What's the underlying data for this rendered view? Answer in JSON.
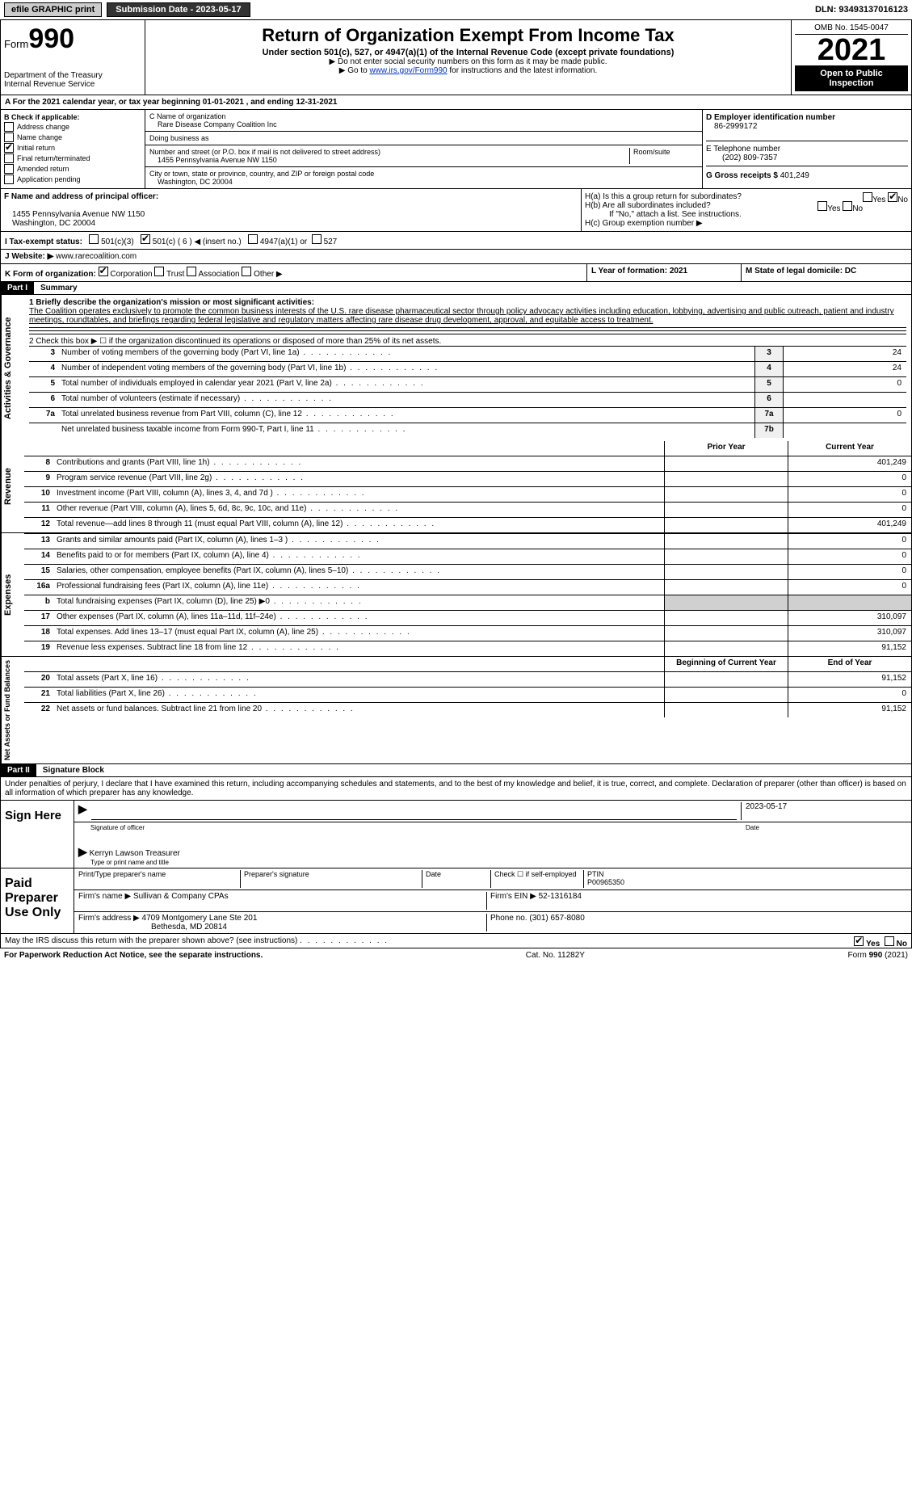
{
  "topbar": {
    "efile": "efile GRAPHIC print",
    "submission": "Submission Date - 2023-05-17",
    "dln": "DLN: 93493137016123"
  },
  "header": {
    "form_label": "Form",
    "form_number": "990",
    "title": "Return of Organization Exempt From Income Tax",
    "subtitle": "Under section 501(c), 527, or 4947(a)(1) of the Internal Revenue Code (except private foundations)",
    "note1": "▶ Do not enter social security numbers on this form as it may be made public.",
    "note2": "▶ Go to ",
    "link": "www.irs.gov/Form990",
    "note3": " for instructions and the latest information.",
    "dept": "Department of the Treasury",
    "irs": "Internal Revenue Service",
    "omb": "OMB No. 1545-0047",
    "year": "2021",
    "open": "Open to Public Inspection"
  },
  "lineA": "A For the 2021 calendar year, or tax year beginning 01-01-2021    , and ending 12-31-2021",
  "boxB": {
    "title": "B Check if applicable:",
    "items": [
      "Address change",
      "Name change",
      "Initial return",
      "Final return/terminated",
      "Amended return",
      "Application pending"
    ],
    "checked": "Initial return"
  },
  "boxC": {
    "name_label": "C Name of organization",
    "name": "Rare Disease Company Coalition Inc",
    "dba_label": "Doing business as",
    "dba": "",
    "addr_label": "Number and street (or P.O. box if mail is not delivered to street address)",
    "room_label": "Room/suite",
    "addr": "1455 Pennsylvania Avenue NW 1150",
    "city_label": "City or town, state or province, country, and ZIP or foreign postal code",
    "city": "Washington, DC  20004"
  },
  "boxD": {
    "label": "D Employer identification number",
    "value": "86-2999172"
  },
  "boxE": {
    "label": "E Telephone number",
    "value": "(202) 809-7357"
  },
  "boxG": {
    "label": "G Gross receipts $",
    "value": "401,249"
  },
  "boxF": {
    "label": "F Name and address of principal officer:",
    "addr1": "1455 Pennsylvania Avenue NW 1150",
    "addr2": "Washington, DC  20004"
  },
  "boxH": {
    "a": "H(a)  Is this a group return for subordinates?",
    "b": "H(b)  Are all subordinates included?",
    "note": "If \"No,\" attach a list. See instructions.",
    "c": "H(c)  Group exemption number ▶"
  },
  "boxI": {
    "label": "I  Tax-exempt status:",
    "opt1": "501(c)(3)",
    "opt2": "501(c) ( 6 ) ◀ (insert no.)",
    "opt3": "4947(a)(1) or",
    "opt4": "527"
  },
  "boxJ": {
    "label": "J  Website: ▶",
    "value": "www.rarecoalition.com"
  },
  "boxK": {
    "label": "K Form of organization:",
    "opts": [
      "Corporation",
      "Trust",
      "Association",
      "Other ▶"
    ]
  },
  "boxL": {
    "label": "L Year of formation: 2021"
  },
  "boxM": {
    "label": "M State of legal domicile: DC"
  },
  "part1": {
    "header": "Part I",
    "title": "Summary",
    "line1_label": "1  Briefly describe the organization's mission or most significant activities:",
    "mission": "The Coalition operates exclusively to promote the common business interests of the U.S. rare disease pharmaceutical sector through policy advocacy activities including education, lobbying, advertising and public outreach, patient and industry meetings, roundtables, and briefings regarding federal legislative and regulatory matters affecting rare disease drug development, approval, and equitable access to treatment.",
    "line2": "2   Check this box ▶ ☐ if the organization discontinued its operations or disposed of more than 25% of its net assets.",
    "rows_gov": [
      {
        "n": "3",
        "label": "Number of voting members of the governing body (Part VI, line 1a)",
        "box": "3",
        "val": "24"
      },
      {
        "n": "4",
        "label": "Number of independent voting members of the governing body (Part VI, line 1b)",
        "box": "4",
        "val": "24"
      },
      {
        "n": "5",
        "label": "Total number of individuals employed in calendar year 2021 (Part V, line 2a)",
        "box": "5",
        "val": "0"
      },
      {
        "n": "6",
        "label": "Total number of volunteers (estimate if necessary)",
        "box": "6",
        "val": ""
      },
      {
        "n": "7a",
        "label": "Total unrelated business revenue from Part VIII, column (C), line 12",
        "box": "7a",
        "val": "0"
      },
      {
        "n": "",
        "label": "Net unrelated business taxable income from Form 990-T, Part I, line 11",
        "box": "7b",
        "val": ""
      }
    ],
    "col_prior": "Prior Year",
    "col_current": "Current Year",
    "rows_rev": [
      {
        "n": "8",
        "label": "Contributions and grants (Part VIII, line 1h)",
        "prior": "",
        "cur": "401,249"
      },
      {
        "n": "9",
        "label": "Program service revenue (Part VIII, line 2g)",
        "prior": "",
        "cur": "0"
      },
      {
        "n": "10",
        "label": "Investment income (Part VIII, column (A), lines 3, 4, and 7d )",
        "prior": "",
        "cur": "0"
      },
      {
        "n": "11",
        "label": "Other revenue (Part VIII, column (A), lines 5, 6d, 8c, 9c, 10c, and 11e)",
        "prior": "",
        "cur": "0"
      },
      {
        "n": "12",
        "label": "Total revenue—add lines 8 through 11 (must equal Part VIII, column (A), line 12)",
        "prior": "",
        "cur": "401,249"
      }
    ],
    "rows_exp": [
      {
        "n": "13",
        "label": "Grants and similar amounts paid (Part IX, column (A), lines 1–3 )",
        "prior": "",
        "cur": "0"
      },
      {
        "n": "14",
        "label": "Benefits paid to or for members (Part IX, column (A), line 4)",
        "prior": "",
        "cur": "0"
      },
      {
        "n": "15",
        "label": "Salaries, other compensation, employee benefits (Part IX, column (A), lines 5–10)",
        "prior": "",
        "cur": "0"
      },
      {
        "n": "16a",
        "label": "Professional fundraising fees (Part IX, column (A), line 11e)",
        "prior": "",
        "cur": "0"
      },
      {
        "n": "b",
        "label": "Total fundraising expenses (Part IX, column (D), line 25) ▶0",
        "prior": "shaded",
        "cur": "shaded"
      },
      {
        "n": "17",
        "label": "Other expenses (Part IX, column (A), lines 11a–11d, 11f–24e)",
        "prior": "",
        "cur": "310,097"
      },
      {
        "n": "18",
        "label": "Total expenses. Add lines 13–17 (must equal Part IX, column (A), line 25)",
        "prior": "",
        "cur": "310,097"
      },
      {
        "n": "19",
        "label": "Revenue less expenses. Subtract line 18 from line 12",
        "prior": "",
        "cur": "91,152"
      }
    ],
    "col_begin": "Beginning of Current Year",
    "col_end": "End of Year",
    "rows_net": [
      {
        "n": "20",
        "label": "Total assets (Part X, line 16)",
        "prior": "",
        "cur": "91,152"
      },
      {
        "n": "21",
        "label": "Total liabilities (Part X, line 26)",
        "prior": "",
        "cur": "0"
      },
      {
        "n": "22",
        "label": "Net assets or fund balances. Subtract line 21 from line 20",
        "prior": "",
        "cur": "91,152"
      }
    ]
  },
  "vlabels": {
    "gov": "Activities & Governance",
    "rev": "Revenue",
    "exp": "Expenses",
    "net": "Net Assets or Fund Balances"
  },
  "part2": {
    "header": "Part II",
    "title": "Signature Block",
    "perjury": "Under penalties of perjury, I declare that I have examined this return, including accompanying schedules and statements, and to the best of my knowledge and belief, it is true, correct, and complete. Declaration of preparer (other than officer) is based on all information of which preparer has any knowledge."
  },
  "sign": {
    "label": "Sign Here",
    "sig_label": "Signature of officer",
    "date": "2023-05-17",
    "date_label": "Date",
    "name": "Kerryn Lawson  Treasurer",
    "name_label": "Type or print name and title"
  },
  "preparer": {
    "label": "Paid Preparer Use Only",
    "h1": "Print/Type preparer's name",
    "h2": "Preparer's signature",
    "h3": "Date",
    "h4": "Check ☐ if self-employed",
    "h5": "PTIN",
    "ptin": "P00965350",
    "firm_label": "Firm's name    ▶",
    "firm": "Sullivan & Company CPAs",
    "ein_label": "Firm's EIN ▶",
    "ein": "52-1316184",
    "addr_label": "Firm's address ▶",
    "addr1": "4709 Montgomery Lane Ste 201",
    "addr2": "Bethesda, MD  20814",
    "phone_label": "Phone no.",
    "phone": "(301) 657-8080"
  },
  "discuss": "May the IRS discuss this return with the preparer shown above? (see instructions)",
  "yes": "Yes",
  "no": "No",
  "footer": {
    "left": "For Paperwork Reduction Act Notice, see the separate instructions.",
    "mid": "Cat. No. 11282Y",
    "right": "Form 990 (2021)"
  }
}
